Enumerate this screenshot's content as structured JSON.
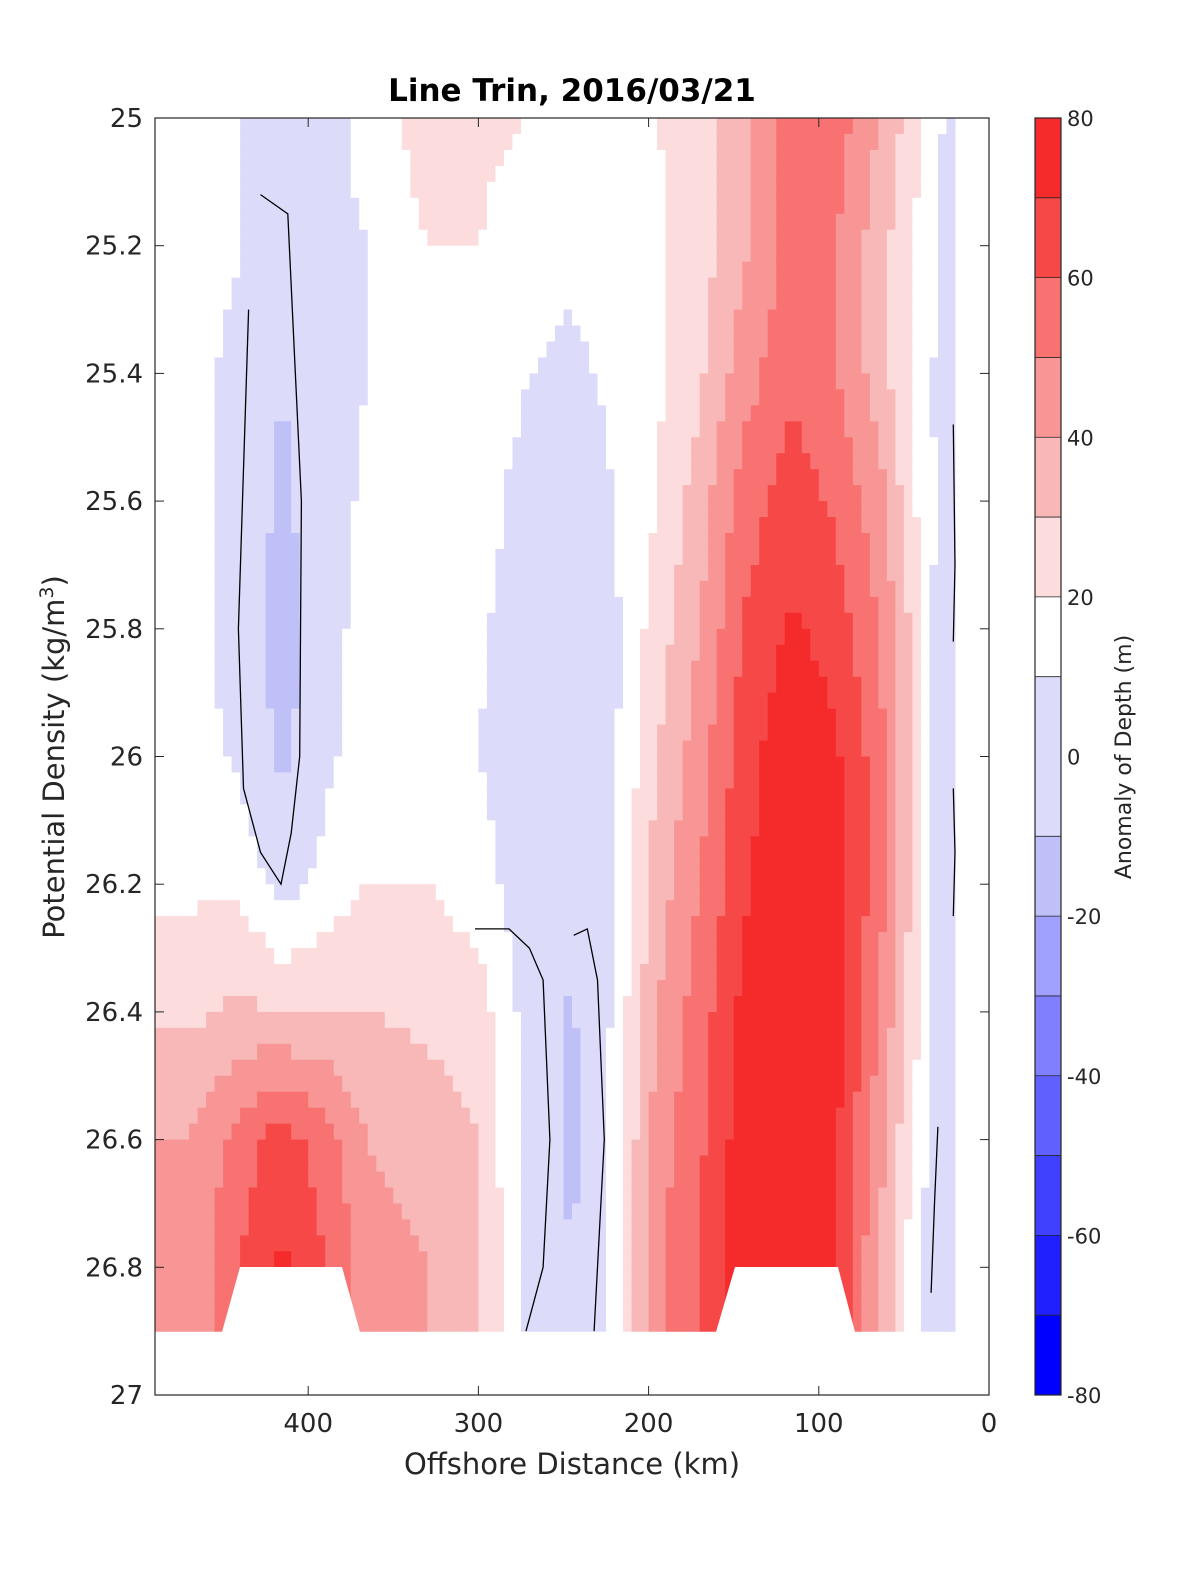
{
  "chart_data": {
    "type": "filled-contour",
    "title": "Line Trin, 2016/03/21",
    "xlabel": "Offshore Distance (km)",
    "ylabel_main": "Potential Density (kg/m",
    "ylabel_sup": "3",
    "ylabel_close": ")",
    "xlim": [
      490,
      0
    ],
    "x_direction": "reversed",
    "ylim": [
      25,
      27
    ],
    "y_direction": "reversed",
    "xticks": [
      400,
      300,
      200,
      100,
      0
    ],
    "xtick_labels": [
      "400",
      "300",
      "200",
      "100",
      "0"
    ],
    "yticks": [
      25,
      25.2,
      25.4,
      25.6,
      25.8,
      26,
      26.2,
      26.4,
      26.6,
      26.8,
      27
    ],
    "ytick_labels": [
      "25",
      "25.2",
      "25.4",
      "25.6",
      "25.8",
      "26",
      "26.2",
      "26.4",
      "26.6",
      "26.8",
      "27"
    ],
    "colorbar": {
      "label": "Anomaly of Depth (m)",
      "range": [
        -80,
        80
      ],
      "levels": [
        -80,
        -70,
        -60,
        -50,
        -40,
        -30,
        -20,
        -10,
        10,
        20,
        30,
        40,
        50,
        60,
        70,
        80
      ],
      "ticks": [
        80,
        60,
        40,
        20,
        0,
        -20,
        -40,
        -60,
        -80
      ],
      "tick_labels": [
        "80",
        "60",
        "40",
        "20",
        "0",
        "-20",
        "-40",
        "-60",
        "-80"
      ],
      "colors": [
        "#0000ff",
        "#2020ff",
        "#4040ff",
        "#6060ff",
        "#8080ff",
        "#a0a0ff",
        "#c0c0f8",
        "#dcdcfa",
        "#ffffff",
        "#fcdcdc",
        "#f9b8b8",
        "#f89696",
        "#f87272",
        "#f74848",
        "#f52a2a",
        "#ff0000"
      ]
    },
    "columns": [
      {
        "x": 470,
        "values": [
          20,
          15,
          12,
          14,
          15,
          14,
          18,
          28,
          40,
          40
        ]
      },
      {
        "x": 440,
        "values": [
          10,
          10,
          8,
          5,
          5,
          8,
          18,
          32,
          55,
          60
        ]
      },
      {
        "x": 415,
        "values": [
          -2,
          -5,
          -10,
          -15,
          -20,
          -15,
          5,
          30,
          65,
          72
        ]
      },
      {
        "x": 390,
        "values": [
          5,
          5,
          5,
          5,
          5,
          8,
          14,
          30,
          55,
          60
        ]
      },
      {
        "x": 365,
        "values": [
          15,
          10,
          10,
          12,
          15,
          15,
          20,
          30,
          40,
          45
        ]
      },
      {
        "x": 330,
        "values": [
          25,
          20,
          18,
          18,
          15,
          15,
          20,
          28,
          35,
          40
        ]
      },
      {
        "x": 300,
        "values": [
          22,
          20,
          18,
          15,
          12,
          10,
          15,
          25,
          30,
          32
        ]
      },
      {
        "x": 270,
        "values": [
          20,
          15,
          10,
          5,
          3,
          0,
          3,
          5,
          5,
          5
        ]
      },
      {
        "x": 245,
        "values": [
          15,
          12,
          8,
          3,
          0,
          -5,
          -8,
          -12,
          -15,
          -10
        ]
      },
      {
        "x": 220,
        "values": [
          15,
          15,
          12,
          10,
          8,
          8,
          10,
          12,
          15,
          15
        ]
      },
      {
        "x": 195,
        "values": [
          20,
          18,
          18,
          20,
          25,
          30,
          35,
          40,
          45,
          48
        ]
      },
      {
        "x": 170,
        "values": [
          25,
          25,
          28,
          35,
          40,
          45,
          50,
          55,
          58,
          60
        ]
      },
      {
        "x": 145,
        "values": [
          35,
          38,
          45,
          55,
          60,
          65,
          68,
          72,
          75,
          78
        ]
      },
      {
        "x": 115,
        "values": [
          60,
          55,
          58,
          65,
          72,
          78,
          80,
          80,
          80,
          80
        ]
      },
      {
        "x": 90,
        "values": [
          55,
          50,
          50,
          58,
          65,
          72,
          75,
          75,
          72,
          70
        ]
      },
      {
        "x": 65,
        "values": [
          40,
          35,
          35,
          45,
          50,
          55,
          55,
          50,
          45,
          40
        ]
      },
      {
        "x": 45,
        "values": [
          25,
          20,
          18,
          22,
          28,
          30,
          28,
          25,
          20,
          15
        ]
      },
      {
        "x": 30,
        "values": [
          12,
          10,
          8,
          8,
          6,
          6,
          5,
          5,
          3,
          0
        ]
      },
      {
        "x": 20,
        "values": [
          5,
          3,
          2,
          0,
          0,
          0,
          0,
          2,
          2,
          0
        ]
      }
    ],
    "y_samples": [
      25.0,
      25.2,
      25.4,
      25.6,
      25.8,
      26.0,
      26.2,
      26.4,
      26.6,
      26.8
    ],
    "zero_contours": [
      {
        "name": "zero-contour-420km",
        "points": [
          [
            428,
            25.12
          ],
          [
            412,
            25.15
          ],
          [
            404,
            25.6
          ],
          [
            405,
            26.0
          ],
          [
            410,
            26.12
          ],
          [
            416,
            26.2
          ],
          [
            428,
            26.15
          ],
          [
            438,
            26.05
          ],
          [
            441,
            25.8
          ],
          [
            435,
            25.3
          ]
        ]
      },
      {
        "name": "zero-contour-250km",
        "points": [
          [
            272,
            26.9
          ],
          [
            262,
            26.8
          ],
          [
            258,
            26.6
          ],
          [
            262,
            26.35
          ],
          [
            270,
            26.3
          ],
          [
            282,
            26.27
          ],
          [
            302,
            26.27
          ]
        ]
      },
      {
        "name": "zero-contour-250km-east",
        "points": [
          [
            232,
            26.9
          ],
          [
            226,
            26.6
          ],
          [
            230,
            26.35
          ],
          [
            236,
            26.27
          ],
          [
            244,
            26.28
          ]
        ]
      },
      {
        "name": "zero-contour-coast-upper",
        "points": [
          [
            21,
            25.48
          ],
          [
            20,
            25.7
          ],
          [
            21,
            25.82
          ]
        ]
      },
      {
        "name": "zero-contour-coast-mid",
        "points": [
          [
            21,
            26.05
          ],
          [
            20,
            26.15
          ],
          [
            21,
            26.25
          ]
        ]
      },
      {
        "name": "zero-contour-coast-lower",
        "points": [
          [
            30,
            26.58
          ],
          [
            32,
            26.7
          ],
          [
            34,
            26.84
          ]
        ]
      }
    ]
  }
}
